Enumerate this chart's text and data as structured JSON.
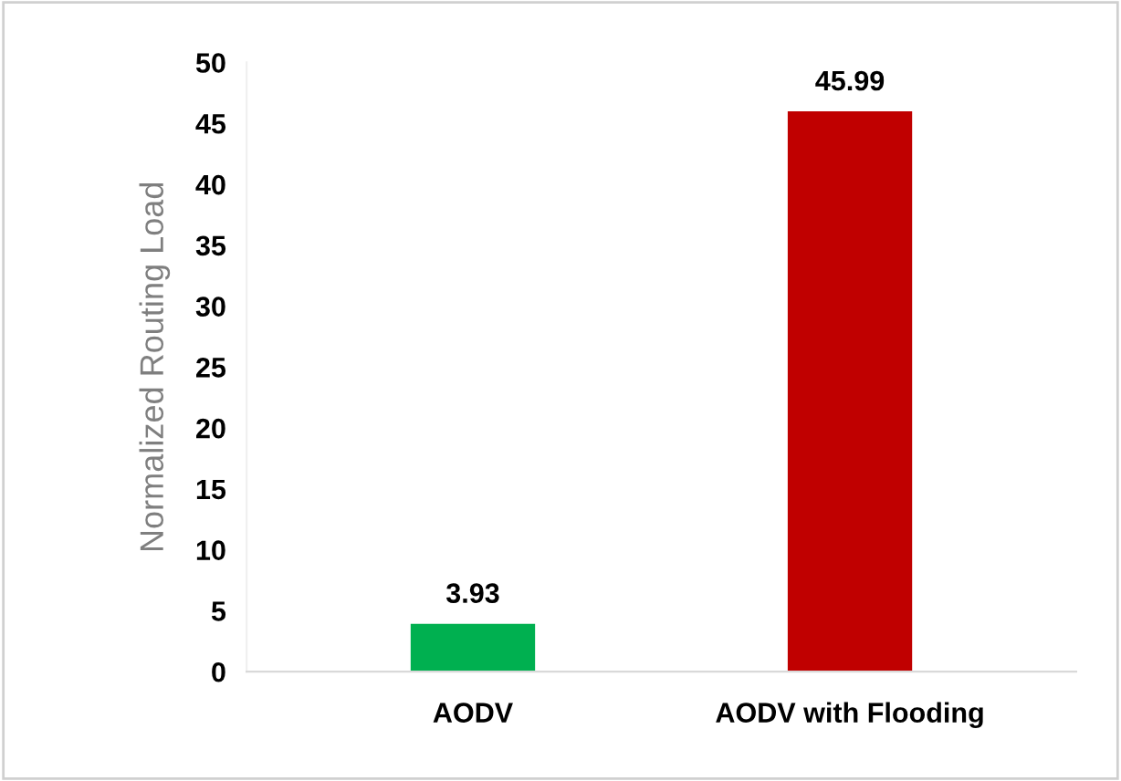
{
  "chart_data": {
    "type": "bar",
    "ylabel": "Normalized Routing Load",
    "categories": [
      "AODV",
      "AODV with Flooding"
    ],
    "values": [
      3.93,
      45.99
    ],
    "colors": [
      "#00b050",
      "#c00000"
    ],
    "ylim": [
      0,
      50
    ],
    "yticks": [
      0,
      5,
      10,
      15,
      20,
      25,
      30,
      35,
      40,
      45,
      50
    ],
    "grid": false,
    "data_labels": true
  }
}
